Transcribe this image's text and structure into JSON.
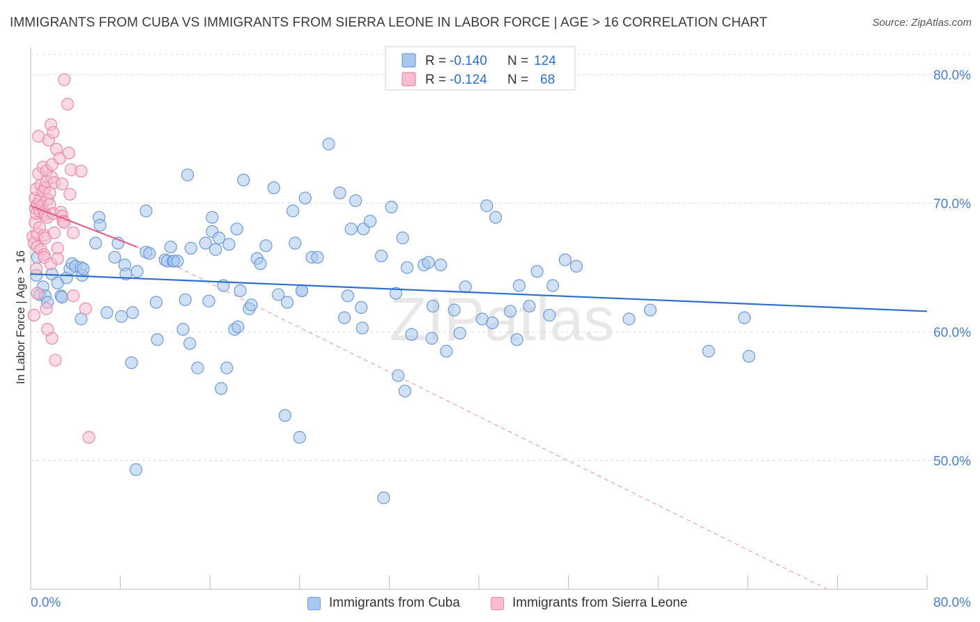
{
  "header": {
    "title": "IMMIGRANTS FROM CUBA VS IMMIGRANTS FROM SIERRA LEONE IN LABOR FORCE | AGE > 16 CORRELATION CHART",
    "source": "Source: ZipAtlas.com"
  },
  "colors": {
    "blue_fill": "#aac8ef",
    "blue_stroke": "#6e9ad6",
    "blue_line": "#2f6fcc",
    "pink_fill": "#f6bcd0",
    "pink_stroke": "#e88aa9",
    "pink_line": "#e2608d",
    "axis_label": "#4a7ed0",
    "grid": "#dddddd"
  },
  "chart_data": {
    "type": "scatter",
    "title": "IMMIGRANTS FROM CUBA VS IMMIGRANTS FROM SIERRA LEONE IN LABOR FORCE | AGE > 16 CORRELATION CHART",
    "xlabel": "",
    "ylabel": "In Labor Force | Age > 16",
    "xlim": [
      0,
      80
    ],
    "ylim": [
      40,
      82
    ],
    "x_tick_labels": [
      "0.0%",
      "80.0%"
    ],
    "y_ticks": [
      50,
      60,
      70,
      80
    ],
    "y_tick_labels": [
      "50.0%",
      "60.0%",
      "70.0%",
      "80.0%"
    ],
    "grid": true,
    "legend_position": "top-center",
    "watermark": "ZIPatlas",
    "stats": [
      {
        "series": "Immigrants from Cuba",
        "r_label": "R =",
        "r_value": "-0.140",
        "n_label": "N =",
        "n_value": "124"
      },
      {
        "series": "Immigrants from Sierra Leone",
        "r_label": "R =",
        "r_value": "-0.124",
        "n_label": "N =",
        "n_value": "68"
      }
    ],
    "series": [
      {
        "name": "Immigrants from Cuba",
        "color": "#aac8ef",
        "trend": {
          "x": [
            0,
            80
          ],
          "y": [
            64.5,
            61.6
          ]
        },
        "points": [
          [
            0.5,
            64.4
          ],
          [
            0.6,
            65.8
          ],
          [
            0.8,
            62.9
          ],
          [
            1.1,
            63.5
          ],
          [
            1.3,
            62.8
          ],
          [
            1.5,
            62.3
          ],
          [
            1.9,
            64.5
          ],
          [
            2.4,
            63.8
          ],
          [
            2.7,
            62.8
          ],
          [
            2.8,
            62.7
          ],
          [
            3.2,
            64.2
          ],
          [
            3.5,
            64.9
          ],
          [
            3.7,
            65.3
          ],
          [
            4.0,
            65.1
          ],
          [
            4.5,
            65.0
          ],
          [
            4.6,
            64.4
          ],
          [
            4.7,
            64.9
          ],
          [
            4.5,
            61.0
          ],
          [
            6.1,
            68.9
          ],
          [
            6.2,
            68.3
          ],
          [
            5.8,
            66.9
          ],
          [
            6.8,
            61.5
          ],
          [
            7.5,
            65.8
          ],
          [
            7.8,
            66.9
          ],
          [
            8.4,
            65.2
          ],
          [
            8.5,
            64.5
          ],
          [
            8.1,
            61.2
          ],
          [
            9.1,
            61.5
          ],
          [
            9.0,
            57.6
          ],
          [
            9.5,
            64.7
          ],
          [
            9.4,
            49.3
          ],
          [
            10.3,
            66.2
          ],
          [
            10.6,
            66.1
          ],
          [
            10.3,
            69.4
          ],
          [
            11.2,
            62.3
          ],
          [
            11.3,
            59.4
          ],
          [
            12.0,
            65.6
          ],
          [
            12.2,
            65.5
          ],
          [
            12.7,
            65.5
          ],
          [
            12.5,
            66.6
          ],
          [
            12.8,
            65.5
          ],
          [
            13.1,
            65.5
          ],
          [
            13.6,
            60.2
          ],
          [
            13.8,
            62.5
          ],
          [
            14.2,
            59.1
          ],
          [
            14.0,
            72.2
          ],
          [
            14.3,
            66.5
          ],
          [
            14.9,
            57.2
          ],
          [
            15.6,
            66.9
          ],
          [
            15.9,
            62.4
          ],
          [
            16.2,
            68.9
          ],
          [
            16.2,
            67.8
          ],
          [
            16.5,
            66.4
          ],
          [
            16.8,
            67.3
          ],
          [
            17.0,
            55.6
          ],
          [
            17.2,
            63.6
          ],
          [
            17.5,
            57.2
          ],
          [
            17.7,
            66.8
          ],
          [
            18.2,
            60.2
          ],
          [
            18.5,
            60.4
          ],
          [
            18.4,
            68.0
          ],
          [
            18.7,
            63.2
          ],
          [
            19.0,
            71.8
          ],
          [
            19.5,
            61.8
          ],
          [
            19.7,
            62.1
          ],
          [
            20.2,
            65.7
          ],
          [
            20.5,
            65.3
          ],
          [
            21.0,
            66.7
          ],
          [
            21.7,
            71.2
          ],
          [
            22.1,
            62.9
          ],
          [
            22.7,
            53.5
          ],
          [
            22.9,
            62.3
          ],
          [
            23.4,
            69.4
          ],
          [
            23.6,
            66.9
          ],
          [
            24.0,
            51.8
          ],
          [
            24.2,
            63.2
          ],
          [
            24.2,
            63.2
          ],
          [
            24.5,
            70.4
          ],
          [
            25.1,
            65.8
          ],
          [
            25.6,
            65.8
          ],
          [
            26.6,
            74.6
          ],
          [
            27.6,
            70.8
          ],
          [
            28.0,
            61.1
          ],
          [
            28.3,
            62.8
          ],
          [
            28.6,
            68.0
          ],
          [
            29.0,
            70.2
          ],
          [
            29.5,
            61.9
          ],
          [
            29.6,
            60.3
          ],
          [
            29.7,
            68.0
          ],
          [
            30.3,
            68.6
          ],
          [
            31.3,
            65.9
          ],
          [
            31.5,
            47.1
          ],
          [
            32.2,
            69.7
          ],
          [
            32.6,
            63.0
          ],
          [
            32.8,
            56.6
          ],
          [
            33.2,
            67.3
          ],
          [
            33.4,
            55.4
          ],
          [
            33.6,
            65.0
          ],
          [
            34.0,
            59.8
          ],
          [
            35.1,
            65.2
          ],
          [
            35.5,
            65.4
          ],
          [
            35.8,
            59.5
          ],
          [
            35.9,
            62.0
          ],
          [
            36.6,
            65.2
          ],
          [
            37.1,
            58.5
          ],
          [
            37.8,
            61.7
          ],
          [
            38.3,
            59.9
          ],
          [
            38.8,
            63.5
          ],
          [
            40.3,
            61.0
          ],
          [
            40.7,
            69.8
          ],
          [
            41.2,
            60.7
          ],
          [
            41.5,
            68.9
          ],
          [
            42.8,
            61.6
          ],
          [
            43.4,
            59.4
          ],
          [
            43.6,
            63.6
          ],
          [
            44.5,
            62.0
          ],
          [
            45.2,
            64.7
          ],
          [
            46.3,
            61.3
          ],
          [
            46.6,
            63.6
          ],
          [
            47.7,
            65.6
          ],
          [
            48.7,
            65.1
          ],
          [
            53.4,
            61.0
          ],
          [
            55.3,
            61.7
          ],
          [
            60.5,
            58.5
          ],
          [
            63.7,
            61.1
          ],
          [
            64.1,
            58.1
          ]
        ]
      },
      {
        "name": "Immigrants from Sierra Leone",
        "color": "#f6bcd0",
        "trend": {
          "x": [
            0,
            9.5
          ],
          "y": [
            69.8,
            66.6
          ]
        },
        "trend_extension": {
          "x": [
            9.5,
            71.1
          ],
          "y": [
            66.6,
            40.0
          ]
        },
        "points": [
          [
            0.2,
            67.4
          ],
          [
            0.3,
            66.9
          ],
          [
            0.4,
            68.5
          ],
          [
            0.4,
            69.6
          ],
          [
            0.4,
            70.4
          ],
          [
            0.5,
            71.1
          ],
          [
            0.5,
            69.2
          ],
          [
            0.6,
            69.9
          ],
          [
            0.6,
            67.6
          ],
          [
            0.6,
            66.6
          ],
          [
            0.7,
            75.2
          ],
          [
            0.7,
            72.3
          ],
          [
            0.8,
            70.2
          ],
          [
            0.8,
            69.4
          ],
          [
            0.8,
            68.1
          ],
          [
            0.9,
            71.4
          ],
          [
            0.9,
            66.4
          ],
          [
            1.0,
            69.8
          ],
          [
            1.1,
            72.8
          ],
          [
            1.1,
            70.9
          ],
          [
            1.2,
            69.3
          ],
          [
            1.2,
            67.5
          ],
          [
            1.2,
            66.0
          ],
          [
            1.2,
            65.8
          ],
          [
            1.3,
            71.2
          ],
          [
            1.3,
            69.1
          ],
          [
            1.3,
            67.3
          ],
          [
            1.4,
            72.5
          ],
          [
            1.4,
            71.7
          ],
          [
            1.5,
            70.3
          ],
          [
            1.5,
            68.9
          ],
          [
            1.6,
            74.9
          ],
          [
            1.7,
            70.8
          ],
          [
            1.7,
            69.9
          ],
          [
            1.8,
            76.1
          ],
          [
            1.8,
            65.3
          ],
          [
            1.9,
            73.0
          ],
          [
            1.9,
            72.0
          ],
          [
            1.9,
            59.5
          ],
          [
            2.0,
            75.5
          ],
          [
            2.0,
            69.2
          ],
          [
            2.1,
            71.6
          ],
          [
            2.1,
            67.7
          ],
          [
            2.2,
            57.8
          ],
          [
            2.3,
            74.2
          ],
          [
            2.4,
            66.5
          ],
          [
            2.4,
            65.7
          ],
          [
            2.6,
            73.5
          ],
          [
            2.7,
            69.3
          ],
          [
            2.8,
            71.5
          ],
          [
            2.8,
            69.0
          ],
          [
            2.9,
            68.6
          ],
          [
            3.0,
            68.5
          ],
          [
            3.0,
            79.6
          ],
          [
            3.3,
            77.7
          ],
          [
            3.4,
            73.9
          ],
          [
            3.5,
            70.7
          ],
          [
            3.6,
            72.6
          ],
          [
            3.8,
            67.7
          ],
          [
            3.8,
            62.8
          ],
          [
            4.5,
            72.5
          ],
          [
            4.9,
            61.8
          ],
          [
            5.2,
            51.8
          ],
          [
            1.4,
            61.8
          ],
          [
            1.5,
            60.2
          ],
          [
            0.3,
            61.3
          ],
          [
            0.5,
            64.9
          ],
          [
            0.6,
            63.0
          ]
        ]
      }
    ]
  }
}
